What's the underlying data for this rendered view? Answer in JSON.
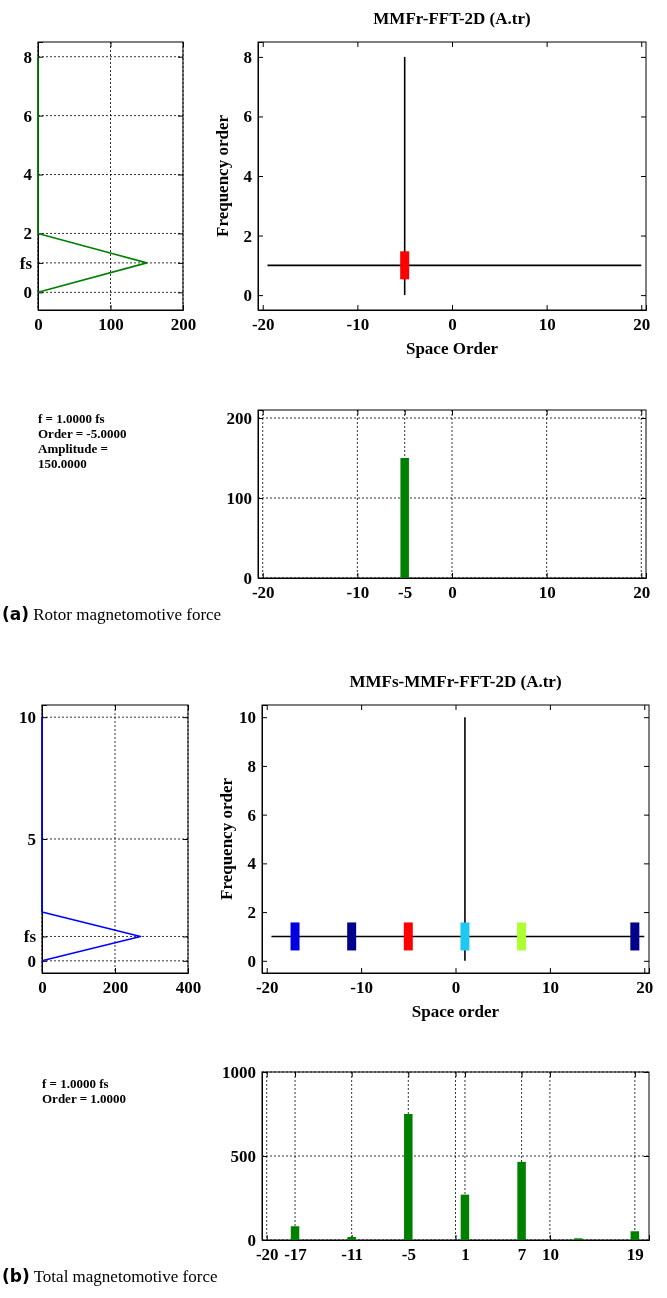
{
  "chart_data": [
    {
      "type": "line",
      "xlim": [
        0,
        200
      ],
      "xticks": [
        0,
        100,
        200
      ],
      "ylim": [
        -0.6,
        8.5
      ],
      "yticks": [
        0,
        {
          "value": 1,
          "label": "fs"
        },
        2,
        4,
        6,
        8
      ],
      "grid": true,
      "series": [
        {
          "color": "#008000",
          "x": [
            0,
            150,
            0,
            0
          ],
          "values": [
            0,
            1,
            2,
            8
          ]
        }
      ]
    },
    {
      "type": "line",
      "title": "MMFr-FFT-2D (A.tr)",
      "xlabel": "Space Order",
      "ylabel": "Frequency order",
      "xlim": [
        -20.5,
        20.5
      ],
      "xticks": [
        -20,
        -10,
        0,
        10,
        20
      ],
      "ylim": [
        -0.5,
        8.5
      ],
      "yticks": [
        0,
        2,
        4,
        6,
        8
      ],
      "grid": false,
      "series": [
        {
          "color": "#000000",
          "x": [
            -19.5,
            20
          ],
          "values": [
            1,
            1
          ]
        },
        {
          "color": "#000000",
          "x": [
            -5,
            -5
          ],
          "values": [
            0,
            8
          ]
        },
        {
          "type": "scatter",
          "marker": "square",
          "x": [
            -5
          ],
          "values": [
            1
          ],
          "colors": [
            "#ff0000"
          ]
        }
      ]
    },
    {
      "type": "other",
      "annotations": [
        "f = 1.0000 fs",
        "Order = -5.0000",
        "Amplitude =",
        "150.0000"
      ]
    },
    {
      "type": "bar",
      "x": [
        -5
      ],
      "values": [
        150
      ],
      "color": "#008000",
      "xlim": [
        -20.5,
        20.5
      ],
      "xticks": [
        -20,
        -10,
        -5,
        0,
        10,
        20
      ],
      "ylim": [
        0,
        210
      ],
      "yticks": [
        0,
        100,
        200
      ],
      "grid": true,
      "annotations": [
        "(a) Rotor magnetomotive force"
      ]
    },
    {
      "type": "line",
      "xlim": [
        0,
        400
      ],
      "xticks": [
        0,
        200,
        400
      ],
      "ylim": [
        -0.5,
        10.5
      ],
      "yticks": [
        0,
        {
          "value": 1,
          "label": "fs"
        },
        5,
        10
      ],
      "grid": true,
      "series": [
        {
          "color": "#0000ff",
          "x": [
            0,
            270,
            0,
            0
          ],
          "values": [
            0,
            1,
            2,
            10
          ]
        }
      ]
    },
    {
      "type": "line",
      "title": "MMFs-MMFr-FFT-2D (A.tr)",
      "xlabel": "Space order",
      "ylabel": "Frequency order",
      "xlim": [
        -20.5,
        20.5
      ],
      "xticks": [
        -20,
        -10,
        0,
        10,
        20
      ],
      "ylim": [
        -0.5,
        10.5
      ],
      "yticks": [
        0,
        2,
        4,
        6,
        8,
        10
      ],
      "grid": false,
      "series": [
        {
          "color": "#000000",
          "x": [
            -19.5,
            20
          ],
          "values": [
            1,
            1
          ]
        },
        {
          "color": "#000000",
          "x": [
            1,
            1
          ],
          "values": [
            0,
            10
          ]
        },
        {
          "type": "scatter",
          "marker": "square",
          "x": [
            -17,
            -11,
            -5,
            1,
            7,
            19
          ],
          "values": [
            1,
            1,
            1,
            1,
            1,
            1
          ],
          "colors": [
            "#0000e0",
            "#00008b",
            "#ff0000",
            "#1ec8f0",
            "#adff2f",
            "#00008b"
          ]
        }
      ]
    },
    {
      "type": "other",
      "annotations": [
        "f = 1.0000 fs",
        "Order = 1.0000"
      ]
    },
    {
      "type": "bar",
      "x": [
        -17,
        -11,
        -5,
        1,
        7,
        13,
        19
      ],
      "values": [
        82,
        18,
        750,
        270,
        465,
        10,
        52
      ],
      "color": "#008000",
      "xlim": [
        -20.5,
        20.5
      ],
      "xticks": [
        -20,
        -17,
        -11,
        -5,
        {
          "value": 0,
          "label": null
        },
        1,
        7,
        10,
        19
      ],
      "ylim": [
        0,
        1000
      ],
      "yticks": [
        0,
        500,
        1000
      ],
      "grid": true,
      "annotations": [
        "(b) Total magnetomotive force"
      ]
    }
  ]
}
